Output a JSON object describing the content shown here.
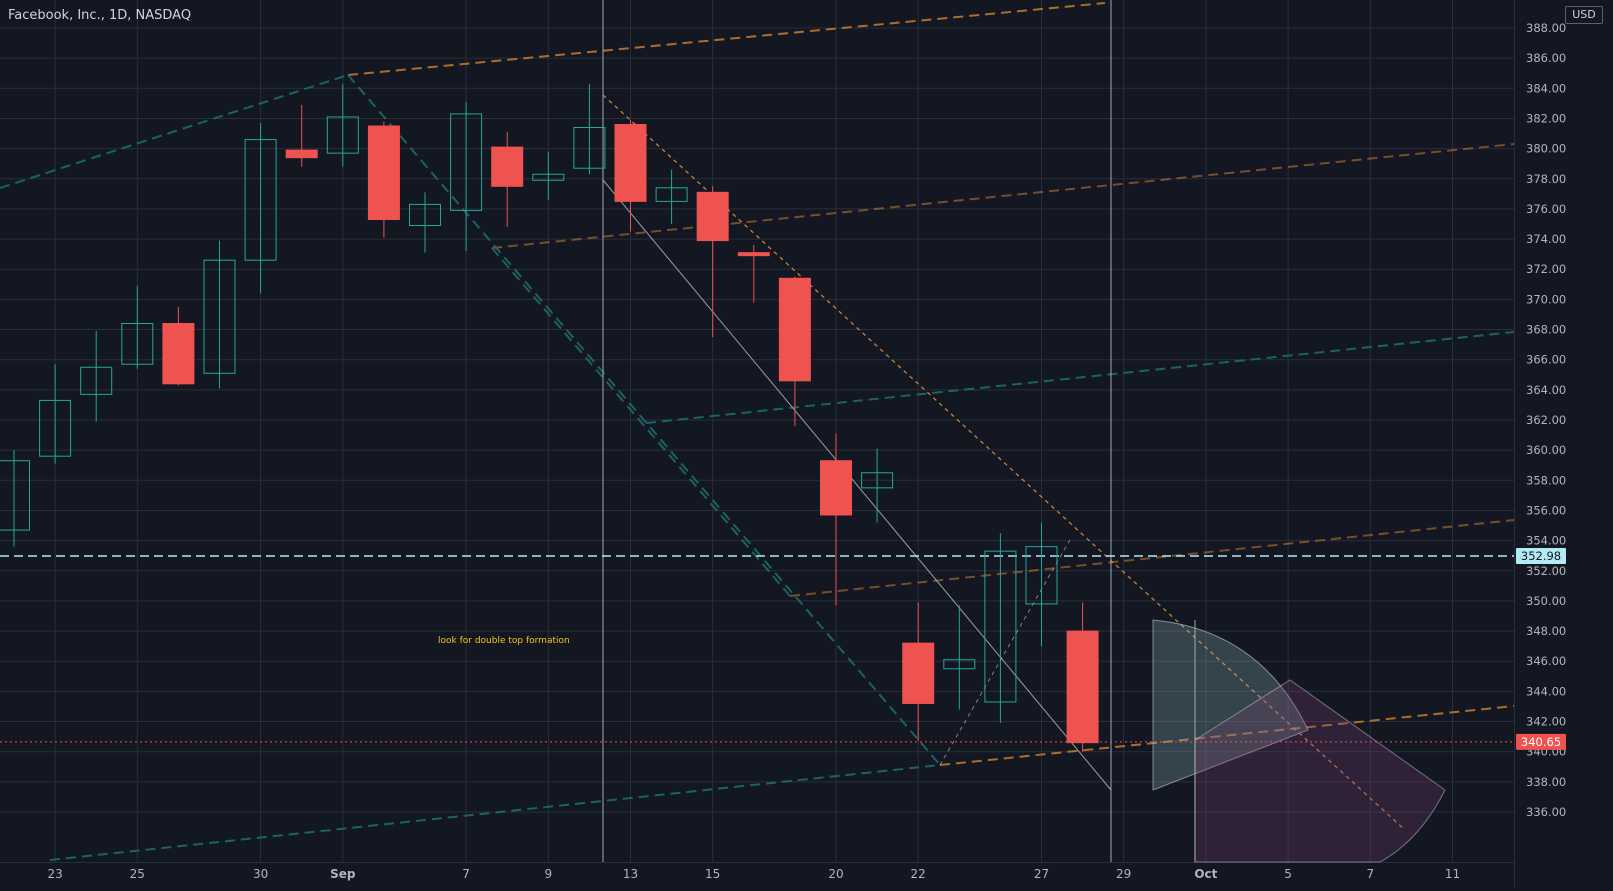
{
  "title": "Facebook, Inc., 1D, NASDAQ",
  "currency": "USD",
  "annotation": "look for double top formation",
  "colors": {
    "background": "#131722",
    "up": "#26a69a",
    "down": "#ef5350",
    "grid": "#2a2e39",
    "axis_text": "#b2b5be",
    "orange_line": "#c77d2e",
    "teal_line": "#1f6b6b",
    "white_line": "#c8cbd4"
  },
  "chart_data": {
    "type": "candlestick",
    "ylim": [
      335,
      389
    ],
    "y_ticks": [
      "336.00",
      "338.00",
      "340.00",
      "342.00",
      "344.00",
      "346.00",
      "348.00",
      "350.00",
      "352.00",
      "354.00",
      "356.00",
      "358.00",
      "360.00",
      "362.00",
      "364.00",
      "366.00",
      "368.00",
      "370.00",
      "372.00",
      "374.00",
      "376.00",
      "378.00",
      "380.00",
      "382.00",
      "384.00",
      "386.00",
      "388.00"
    ],
    "x_ticks": [
      {
        "label": "23",
        "date": "2021-08-23"
      },
      {
        "label": "25",
        "date": "2021-08-25"
      },
      {
        "label": "30",
        "date": "2021-08-30"
      },
      {
        "label": "Sep",
        "date": "2021-09-01"
      },
      {
        "label": "7",
        "date": "2021-09-07"
      },
      {
        "label": "9",
        "date": "2021-09-09"
      },
      {
        "label": "13",
        "date": "2021-09-13"
      },
      {
        "label": "15",
        "date": "2021-09-15"
      },
      {
        "label": "20",
        "date": "2021-09-20"
      },
      {
        "label": "22",
        "date": "2021-09-22"
      },
      {
        "label": "27",
        "date": "2021-09-27"
      },
      {
        "label": "29",
        "date": "2021-09-29"
      },
      {
        "label": "Oct",
        "date": "2021-10-01"
      },
      {
        "label": "5",
        "date": "2021-10-05"
      },
      {
        "label": "7",
        "date": "2021-10-07"
      },
      {
        "label": "11",
        "date": "2021-10-11"
      }
    ],
    "candles": [
      {
        "date": "2021-08-20",
        "open": 354.7,
        "high": 360.0,
        "low": 353.6,
        "close": 359.3
      },
      {
        "date": "2021-08-23",
        "open": 359.6,
        "high": 365.7,
        "low": 359.1,
        "close": 363.3
      },
      {
        "date": "2021-08-24",
        "open": 363.7,
        "high": 367.9,
        "low": 361.9,
        "close": 365.5
      },
      {
        "date": "2021-08-25",
        "open": 365.7,
        "high": 370.9,
        "low": 365.4,
        "close": 368.4
      },
      {
        "date": "2021-08-26",
        "open": 368.4,
        "high": 369.5,
        "low": 364.3,
        "close": 364.4
      },
      {
        "date": "2021-08-27",
        "open": 365.1,
        "high": 373.9,
        "low": 364.1,
        "close": 372.6
      },
      {
        "date": "2021-08-30",
        "open": 372.6,
        "high": 381.7,
        "low": 370.4,
        "close": 380.6
      },
      {
        "date": "2021-08-31",
        "open": 379.9,
        "high": 382.9,
        "low": 378.8,
        "close": 379.4
      },
      {
        "date": "2021-09-01",
        "open": 379.7,
        "high": 384.3,
        "low": 378.8,
        "close": 382.1
      },
      {
        "date": "2021-09-02",
        "open": 381.5,
        "high": 381.8,
        "low": 374.1,
        "close": 375.3
      },
      {
        "date": "2021-09-03",
        "open": 374.9,
        "high": 377.1,
        "low": 373.1,
        "close": 376.3
      },
      {
        "date": "2021-09-07",
        "open": 375.9,
        "high": 383.1,
        "low": 373.2,
        "close": 382.3
      },
      {
        "date": "2021-09-08",
        "open": 380.1,
        "high": 381.1,
        "low": 374.8,
        "close": 377.5
      },
      {
        "date": "2021-09-09",
        "open": 377.9,
        "high": 379.8,
        "low": 376.6,
        "close": 378.3
      },
      {
        "date": "2021-09-10",
        "open": 378.7,
        "high": 384.3,
        "low": 378.3,
        "close": 381.4
      },
      {
        "date": "2021-09-13",
        "open": 381.6,
        "high": 381.9,
        "low": 374.5,
        "close": 376.5
      },
      {
        "date": "2021-09-14",
        "open": 376.5,
        "high": 378.6,
        "low": 375.0,
        "close": 377.4
      },
      {
        "date": "2021-09-15",
        "open": 377.1,
        "high": 377.5,
        "low": 367.5,
        "close": 373.9
      },
      {
        "date": "2021-09-16",
        "open": 373.1,
        "high": 373.6,
        "low": 369.8,
        "close": 372.9
      },
      {
        "date": "2021-09-17",
        "open": 371.4,
        "high": 371.5,
        "low": 361.6,
        "close": 364.6
      },
      {
        "date": "2021-09-20",
        "open": 359.3,
        "high": 361.1,
        "low": 349.7,
        "close": 355.7
      },
      {
        "date": "2021-09-21",
        "open": 357.5,
        "high": 360.1,
        "low": 355.2,
        "close": 358.5
      },
      {
        "date": "2021-09-22",
        "open": 347.2,
        "high": 349.9,
        "low": 340.7,
        "close": 343.2
      },
      {
        "date": "2021-09-23",
        "open": 345.5,
        "high": 349.7,
        "low": 342.8,
        "close": 346.1
      },
      {
        "date": "2021-09-24",
        "open": 343.3,
        "high": 354.5,
        "low": 341.9,
        "close": 353.3
      },
      {
        "date": "2021-09-27",
        "open": 349.8,
        "high": 355.2,
        "low": 347.0,
        "close": 353.6
      },
      {
        "date": "2021-09-28",
        "open": 348.0,
        "high": 349.9,
        "low": 340.0,
        "close": 340.6
      }
    ],
    "price_lines": [
      {
        "value": 352.98,
        "label": "352.98",
        "style": "dashed",
        "color": "#b2ebf2"
      },
      {
        "value": 340.65,
        "label": "340.65",
        "style": "dotted",
        "color": "#ef5350"
      }
    ]
  }
}
